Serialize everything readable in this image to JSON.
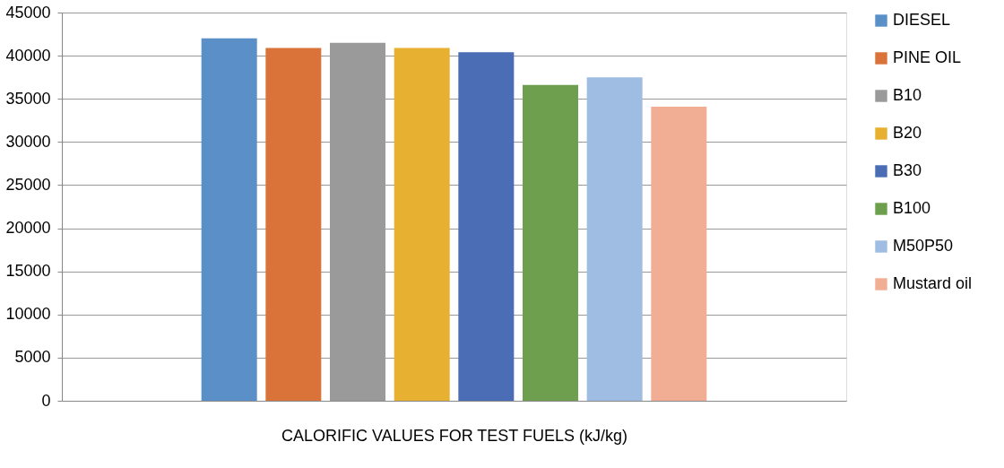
{
  "chart_data": {
    "type": "bar",
    "xlabel": "CALORIFIC VALUES FOR TEST FUELS (kJ/kg)",
    "categories": [
      null
    ],
    "series": [
      {
        "name": "DIESEL",
        "color": "#5b8fc7",
        "values": [
          42000
        ]
      },
      {
        "name": "PINE OIL",
        "color": "#d9733a",
        "values": [
          40900
        ]
      },
      {
        "name": "B10",
        "color": "#9a9a9a",
        "values": [
          41500
        ]
      },
      {
        "name": "B20",
        "color": "#e8b030",
        "values": [
          40900
        ]
      },
      {
        "name": "B30",
        "color": "#4a6db5",
        "values": [
          40400
        ]
      },
      {
        "name": "B100",
        "color": "#6e9f4e",
        "values": [
          36600
        ]
      },
      {
        "name": "M50P50",
        "color": "#9fbde3",
        "values": [
          37500
        ]
      },
      {
        "name": "Mustard oil",
        "color": "#f2ae94",
        "values": [
          34100
        ]
      }
    ],
    "ylim": [
      0,
      45000
    ],
    "yticks": [
      0,
      5000,
      10000,
      15000,
      20000,
      25000,
      30000,
      35000,
      40000,
      45000
    ],
    "grid": "y",
    "legend": "right"
  }
}
